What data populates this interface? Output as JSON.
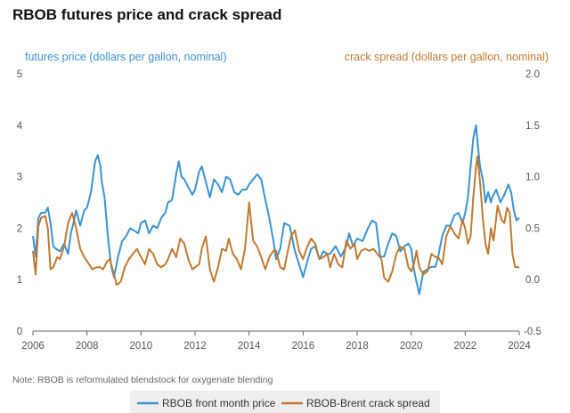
{
  "chart_data": {
    "type": "line",
    "title": "RBOB futures price and crack spread",
    "y_left_label": "futures price (dollars per gallon, nominal)",
    "y_right_label": "crack spread (dollars per gallon, nominal)",
    "note": "Note: RBOB is reformulated blendstock for oxygenate blending",
    "x_ticks": [
      "2006",
      "2008",
      "2010",
      "2012",
      "2014",
      "2016",
      "2018",
      "2020",
      "2022",
      "2024"
    ],
    "x_range": [
      2006,
      2024
    ],
    "y_left_ticks": [
      "0",
      "1",
      "2",
      "3",
      "4",
      "5"
    ],
    "y_left_range": [
      0,
      5
    ],
    "y_right_ticks": [
      "-0.5",
      "0.0",
      "0.5",
      "1.0",
      "1.5",
      "2.0"
    ],
    "y_right_range": [
      -0.5,
      2.0
    ],
    "colors": {
      "price": "#3a93d0",
      "crack": "#c07a30",
      "title": "#111111"
    },
    "series": [
      {
        "name": "RBOB front month price",
        "axis": "left",
        "color": "#3a93d0",
        "x": [
          2006.0,
          2006.1,
          2006.2,
          2006.3,
          2006.45,
          2006.55,
          2006.65,
          2006.75,
          2006.85,
          2007.0,
          2007.15,
          2007.3,
          2007.4,
          2007.5,
          2007.6,
          2007.75,
          2007.9,
          2008.0,
          2008.15,
          2008.3,
          2008.4,
          2008.5,
          2008.55,
          2008.65,
          2008.8,
          2008.9,
          2009.0,
          2009.15,
          2009.3,
          2009.45,
          2009.6,
          2009.75,
          2009.9,
          2010.0,
          2010.15,
          2010.3,
          2010.45,
          2010.6,
          2010.75,
          2010.9,
          2011.0,
          2011.15,
          2011.3,
          2011.4,
          2011.5,
          2011.6,
          2011.75,
          2011.9,
          2012.0,
          2012.15,
          2012.25,
          2012.4,
          2012.55,
          2012.7,
          2012.85,
          2013.0,
          2013.15,
          2013.3,
          2013.45,
          2013.6,
          2013.75,
          2013.9,
          2014.0,
          2014.15,
          2014.3,
          2014.45,
          2014.6,
          2014.75,
          2014.9,
          2015.0,
          2015.15,
          2015.3,
          2015.5,
          2015.7,
          2015.85,
          2016.0,
          2016.15,
          2016.3,
          2016.45,
          2016.6,
          2016.75,
          2016.9,
          2017.0,
          2017.2,
          2017.4,
          2017.6,
          2017.7,
          2017.85,
          2018.0,
          2018.2,
          2018.4,
          2018.55,
          2018.7,
          2018.85,
          2019.0,
          2019.15,
          2019.3,
          2019.45,
          2019.6,
          2019.75,
          2019.9,
          2020.0,
          2020.1,
          2020.2,
          2020.3,
          2020.45,
          2020.6,
          2020.75,
          2020.9,
          2021.0,
          2021.15,
          2021.3,
          2021.45,
          2021.6,
          2021.75,
          2021.9,
          2022.0,
          2022.1,
          2022.2,
          2022.3,
          2022.4,
          2022.45,
          2022.55,
          2022.65,
          2022.75,
          2022.85,
          2022.95,
          2023.0,
          2023.15,
          2023.3,
          2023.45,
          2023.6,
          2023.7,
          2023.8,
          2023.9,
          2024.0
        ],
        "y": [
          1.85,
          1.45,
          2.2,
          2.3,
          2.3,
          2.4,
          2.1,
          1.65,
          1.6,
          1.55,
          1.7,
          1.5,
          1.9,
          2.1,
          2.35,
          2.05,
          2.35,
          2.4,
          2.7,
          3.3,
          3.42,
          3.2,
          2.9,
          2.6,
          1.7,
          1.25,
          1.05,
          1.45,
          1.75,
          1.85,
          2.0,
          1.95,
          1.9,
          2.1,
          2.15,
          1.9,
          2.05,
          2.0,
          2.2,
          2.3,
          2.5,
          2.55,
          3.05,
          3.3,
          3.0,
          2.95,
          2.8,
          2.65,
          2.75,
          3.1,
          3.2,
          2.9,
          2.6,
          2.95,
          2.85,
          2.7,
          3.0,
          2.95,
          2.7,
          2.65,
          2.75,
          2.75,
          2.85,
          2.95,
          3.05,
          2.95,
          2.55,
          2.2,
          1.75,
          1.4,
          1.6,
          2.1,
          2.05,
          1.55,
          1.3,
          1.05,
          1.35,
          1.6,
          1.65,
          1.4,
          1.55,
          1.5,
          1.5,
          1.65,
          1.45,
          1.65,
          1.9,
          1.65,
          1.8,
          1.75,
          2.0,
          2.15,
          2.1,
          1.45,
          1.45,
          1.7,
          1.9,
          1.85,
          1.55,
          1.65,
          1.7,
          1.6,
          1.2,
          0.95,
          0.72,
          1.15,
          1.2,
          1.25,
          1.25,
          1.45,
          1.85,
          2.05,
          2.05,
          2.25,
          2.3,
          2.1,
          2.3,
          2.6,
          3.2,
          3.75,
          4.0,
          3.7,
          3.2,
          2.95,
          2.5,
          2.7,
          2.5,
          2.6,
          2.75,
          2.5,
          2.65,
          2.85,
          2.7,
          2.35,
          2.15,
          2.2
        ]
      },
      {
        "name": "RBOB-Brent crack spread",
        "axis": "right",
        "color": "#c07a30",
        "x": [
          2006.0,
          2006.1,
          2006.2,
          2006.3,
          2006.45,
          2006.55,
          2006.65,
          2006.75,
          2006.9,
          2007.0,
          2007.15,
          2007.3,
          2007.45,
          2007.6,
          2007.75,
          2007.9,
          2008.0,
          2008.2,
          2008.35,
          2008.5,
          2008.6,
          2008.75,
          2008.85,
          2009.0,
          2009.1,
          2009.25,
          2009.4,
          2009.55,
          2009.7,
          2009.85,
          2010.0,
          2010.15,
          2010.3,
          2010.45,
          2010.6,
          2010.75,
          2010.9,
          2011.0,
          2011.15,
          2011.3,
          2011.45,
          2011.6,
          2011.75,
          2011.9,
          2012.0,
          2012.15,
          2012.25,
          2012.4,
          2012.55,
          2012.7,
          2012.85,
          2013.0,
          2013.15,
          2013.25,
          2013.4,
          2013.55,
          2013.7,
          2013.85,
          2014.0,
          2014.15,
          2014.3,
          2014.45,
          2014.6,
          2014.75,
          2014.9,
          2015.0,
          2015.15,
          2015.3,
          2015.45,
          2015.55,
          2015.7,
          2015.85,
          2016.0,
          2016.15,
          2016.3,
          2016.45,
          2016.6,
          2016.75,
          2016.9,
          2017.0,
          2017.15,
          2017.3,
          2017.45,
          2017.6,
          2017.75,
          2017.9,
          2018.0,
          2018.15,
          2018.3,
          2018.45,
          2018.6,
          2018.75,
          2018.9,
          2019.0,
          2019.15,
          2019.3,
          2019.45,
          2019.6,
          2019.75,
          2019.9,
          2020.0,
          2020.1,
          2020.2,
          2020.3,
          2020.45,
          2020.6,
          2020.75,
          2020.9,
          2021.0,
          2021.15,
          2021.3,
          2021.45,
          2021.6,
          2021.75,
          2021.9,
          2022.0,
          2022.1,
          2022.2,
          2022.3,
          2022.4,
          2022.45,
          2022.55,
          2022.65,
          2022.75,
          2022.85,
          2022.95,
          2023.05,
          2023.2,
          2023.35,
          2023.45,
          2023.55,
          2023.65,
          2023.75,
          2023.85,
          2024.0
        ],
        "y": [
          0.28,
          0.05,
          0.52,
          0.6,
          0.62,
          0.5,
          0.1,
          0.12,
          0.22,
          0.2,
          0.32,
          0.55,
          0.65,
          0.5,
          0.3,
          0.22,
          0.18,
          0.1,
          0.12,
          0.12,
          0.1,
          0.18,
          0.2,
          0.05,
          -0.05,
          -0.02,
          0.12,
          0.2,
          0.25,
          0.3,
          0.22,
          0.15,
          0.3,
          0.25,
          0.15,
          0.12,
          0.15,
          0.2,
          0.3,
          0.22,
          0.4,
          0.35,
          0.2,
          0.1,
          0.12,
          0.15,
          0.3,
          0.42,
          0.1,
          -0.02,
          0.12,
          0.3,
          0.28,
          0.4,
          0.25,
          0.2,
          0.1,
          0.3,
          0.75,
          0.38,
          0.32,
          0.22,
          0.1,
          0.22,
          0.28,
          0.28,
          0.12,
          0.1,
          0.3,
          0.42,
          0.48,
          0.28,
          0.2,
          0.32,
          0.4,
          0.35,
          0.2,
          0.22,
          0.25,
          0.12,
          0.25,
          0.15,
          0.12,
          0.38,
          0.3,
          0.35,
          0.2,
          0.28,
          0.3,
          0.28,
          0.3,
          0.25,
          0.2,
          0.02,
          -0.02,
          0.08,
          0.25,
          0.32,
          0.3,
          0.12,
          0.08,
          0.15,
          0.28,
          0.12,
          0.05,
          0.08,
          0.25,
          0.22,
          0.22,
          0.15,
          0.42,
          0.52,
          0.45,
          0.4,
          0.58,
          0.5,
          0.35,
          0.42,
          0.8,
          1.1,
          1.2,
          0.95,
          0.6,
          0.35,
          0.25,
          0.5,
          0.38,
          0.72,
          0.58,
          0.55,
          0.7,
          0.65,
          0.25,
          0.12,
          0.12
        ]
      }
    ],
    "legend": [
      {
        "label": "RBOB front month price",
        "color": "#3a93d0"
      },
      {
        "label": "RBOB-Brent crack spread",
        "color": "#c07a30"
      }
    ],
    "legend_position": "bottom-center",
    "grid": false
  }
}
